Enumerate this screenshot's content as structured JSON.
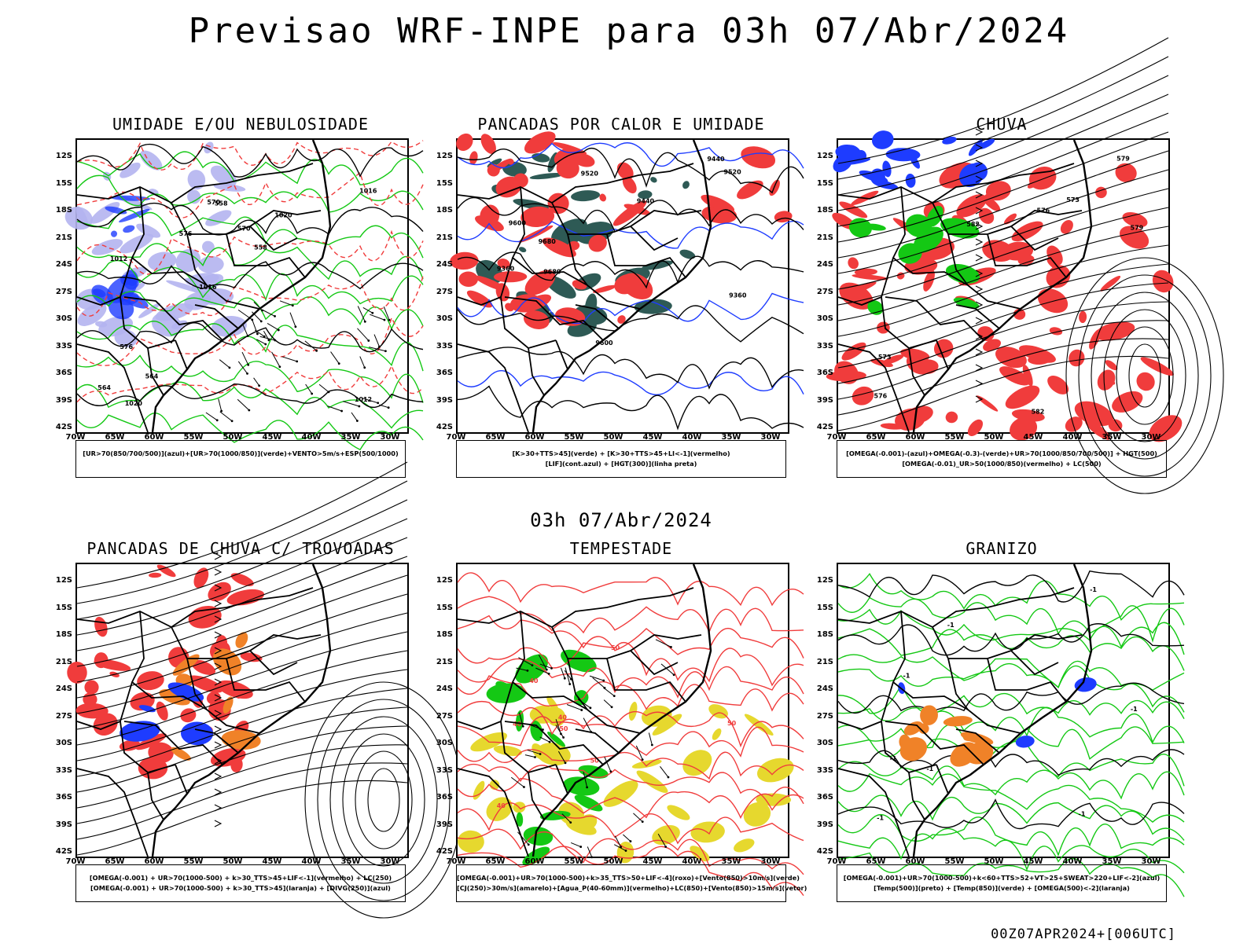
{
  "main_title": "Previsao WRF-INPE  para 03h 07/Abr/2024",
  "mid_date": "03h 07/Abr/2024",
  "footer": "00Z07APR2024+[006UTC]",
  "axes": {
    "lat_labels": [
      "12S",
      "15S",
      "18S",
      "21S",
      "24S",
      "27S",
      "30S",
      "33S",
      "36S",
      "39S",
      "42S"
    ],
    "lon_labels": [
      "70W",
      "65W",
      "60W",
      "55W",
      "50W",
      "45W",
      "40W",
      "35W",
      "30W"
    ]
  },
  "colors": {
    "red": "#f03c3c",
    "green": "#14c814",
    "blue": "#1e3cff",
    "lavender": "#b4b4f0",
    "dark_teal": "#2e5a55",
    "yellow": "#e6d82e",
    "orange": "#f08228",
    "black": "#000000"
  },
  "panels": [
    {
      "title": "UMIDADE E/OU NEBULOSIDADE",
      "legend": [
        "[UR>70(850/700/500)](azul)+[UR>70(1000/850)](verde)+VENTO>5m/s+ESP(500/1000)"
      ],
      "contour_labels": [
        "1012",
        "1016",
        "1020",
        "570",
        "576",
        "564",
        "558"
      ]
    },
    {
      "title": "PANCADAS POR CALOR E UMIDADE",
      "legend": [
        "[K>30+TTS>45](verde) + [K>30+TTS>45+LI<-1](vermelho)",
        "[LIF](cont.azul) + [HGT(300)](linha preta)"
      ],
      "contour_labels": [
        "9680",
        "9600",
        "9520",
        "9440",
        "9360"
      ]
    },
    {
      "title": "CHUVA",
      "legend": [
        "[OMEGA(-0.001)-(azul)+OMEGA(-0.3)-(verde)+UR>70(1000/850/700/500)] + HGT(500)",
        "[OMEGA(-0.01)_UR>50(1000/850)(vermelho) + LC(500)"
      ],
      "contour_labels": [
        "582",
        "579",
        "576",
        "573"
      ]
    },
    {
      "title": "PANCADAS DE CHUVA C/ TROVOADAS",
      "legend": [
        "[OMEGA(-0.001) + UR>70(1000-500) + k>30_TTS>45+LIF<-1](vermelho) + LC(250)",
        "[OMEGA(-0.001) + UR>70(1000-500) + k>30_TTS>45](laranja) + [DIVG(250)](azul)"
      ],
      "contour_labels": []
    },
    {
      "title": "TEMPESTADE",
      "legend": [
        "[OMEGA(-0.001)+UR>70(1000-500)+k>35_TTS>50+LIF<-4](roxo)+[Vento(850)>10m/s](verde)",
        "[CJ(250)>30m/s](amarelo)+[Agua_P(40-60mm)](vermelho)+LC(850)+[Vento(850)>15m/s](vetor)"
      ],
      "contour_labels": [
        "50",
        "40"
      ]
    },
    {
      "title": "GRANIZO",
      "legend": [
        "[OMEGA(-0.001)+UR>70(1000-500)+k<60+TTS>52+VT>25+SWEAT>220+LIF<-2](azul)",
        "[Temp(500)](preto) + [Temp(850)](verde) + [OMEGA(500)<-2](laranja)"
      ],
      "contour_labels": [
        "-1"
      ]
    }
  ]
}
